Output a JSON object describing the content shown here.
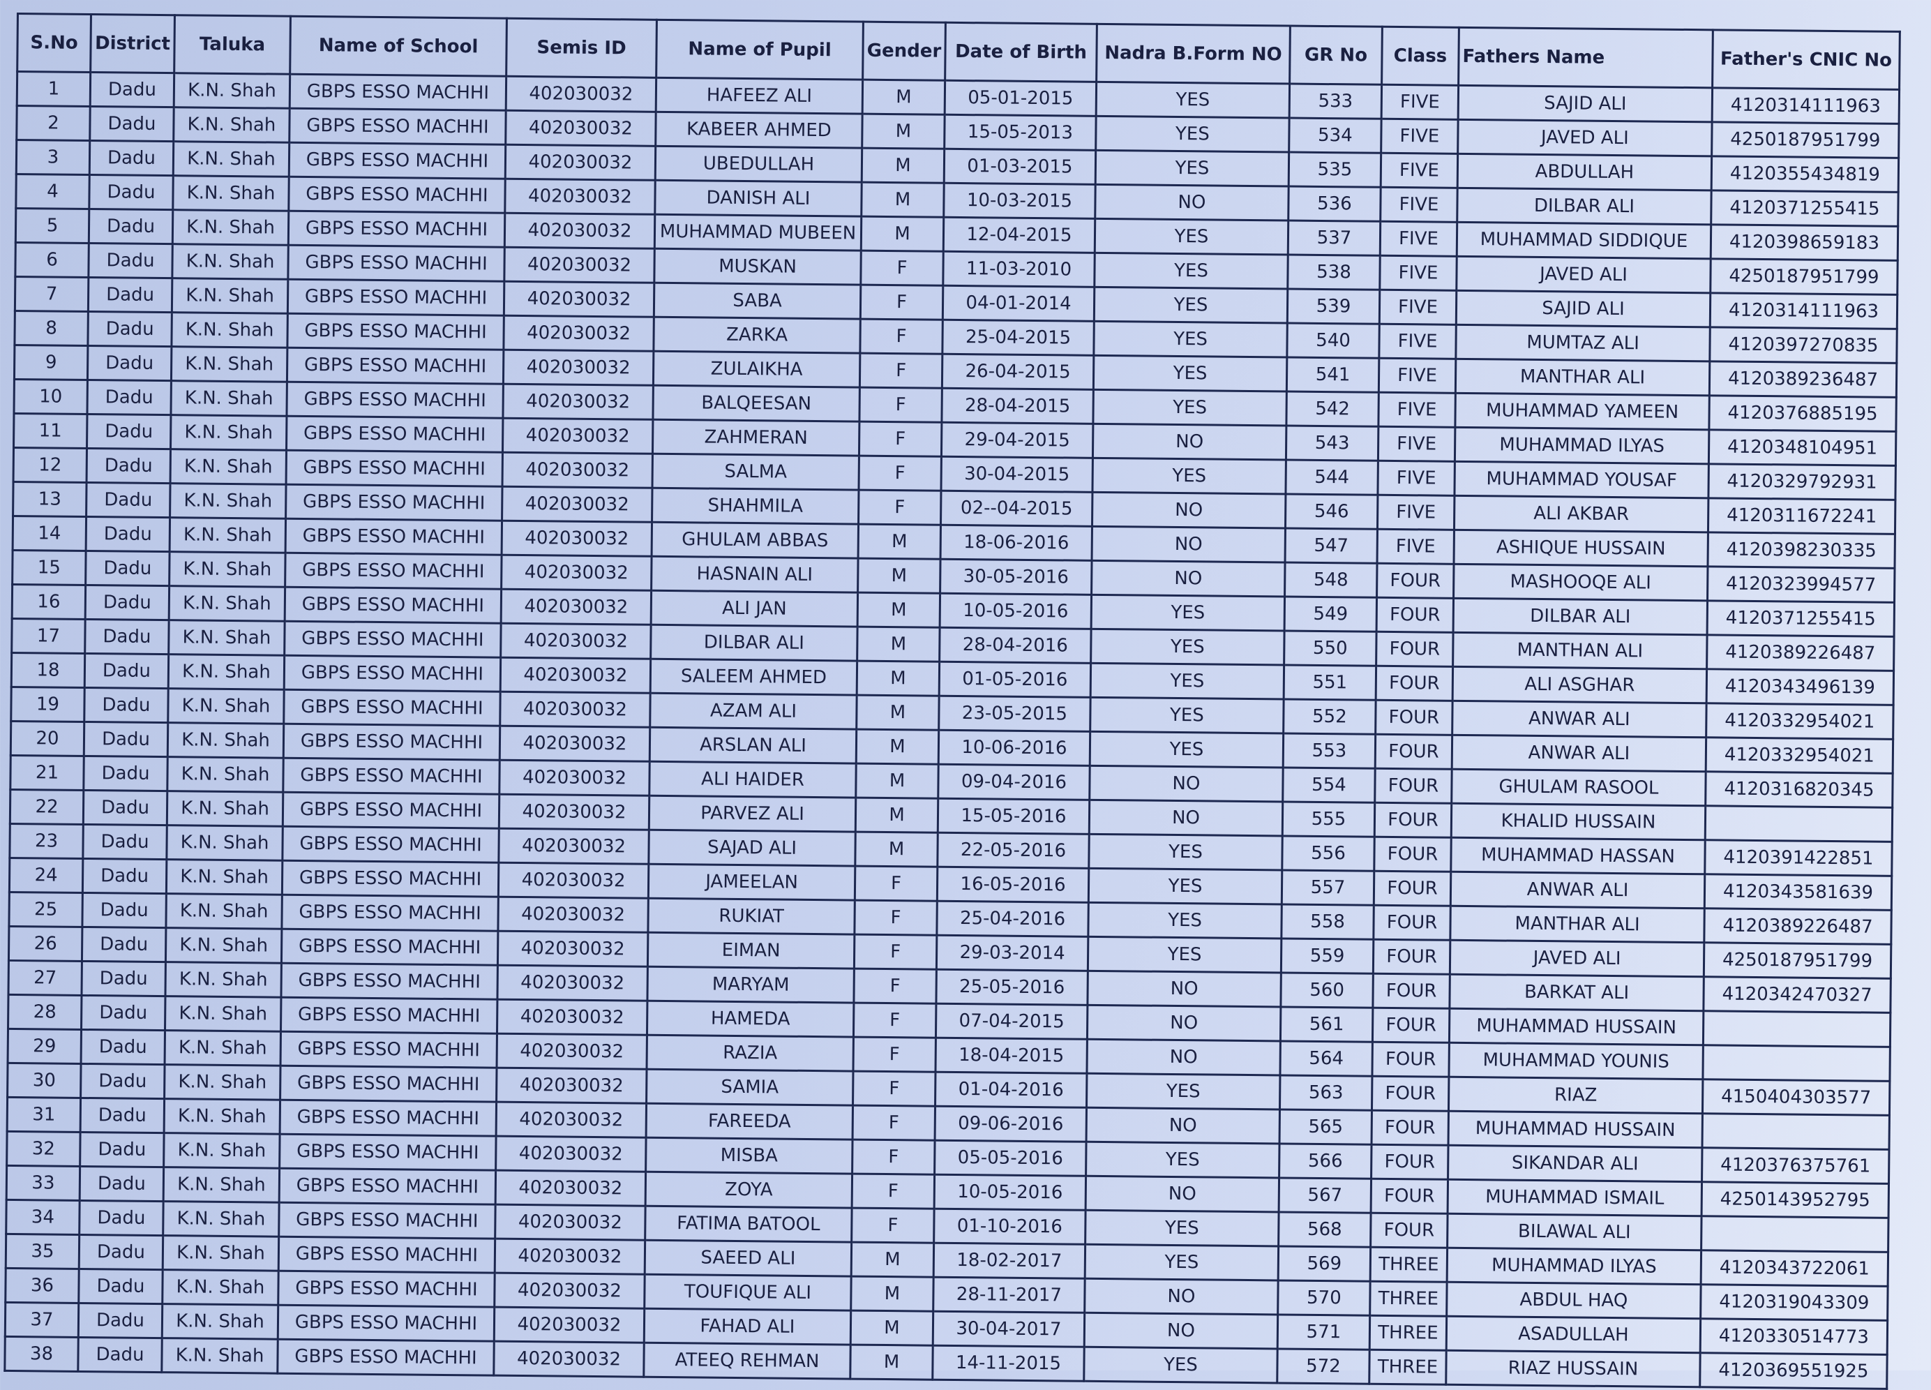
{
  "columns": [
    "S.No",
    "District",
    "Taluka",
    "Name of School",
    "Semis ID",
    "Name of Pupil",
    "Gender",
    "Date of Birth",
    "Nadra B.Form NO",
    "GR No",
    "Class",
    "Fathers Name",
    "Father's CNIC No"
  ],
  "rows": [
    [
      "1",
      "Dadu",
      "K.N. Shah",
      "GBPS ESSO MACHHI",
      "402030032",
      "HAFEEZ ALI",
      "M",
      "05-01-2015",
      "YES",
      "533",
      "FIVE",
      "SAJID ALI",
      "4120314111963"
    ],
    [
      "2",
      "Dadu",
      "K.N. Shah",
      "GBPS ESSO MACHHI",
      "402030032",
      "KABEER AHMED",
      "M",
      "15-05-2013",
      "YES",
      "534",
      "FIVE",
      "JAVED ALI",
      "4250187951799"
    ],
    [
      "3",
      "Dadu",
      "K.N. Shah",
      "GBPS ESSO MACHHI",
      "402030032",
      "UBEDULLAH",
      "M",
      "01-03-2015",
      "YES",
      "535",
      "FIVE",
      "ABDULLAH",
      "4120355434819"
    ],
    [
      "4",
      "Dadu",
      "K.N. Shah",
      "GBPS ESSO MACHHI",
      "402030032",
      "DANISH ALI",
      "M",
      "10-03-2015",
      "NO",
      "536",
      "FIVE",
      "DILBAR ALI",
      "4120371255415"
    ],
    [
      "5",
      "Dadu",
      "K.N. Shah",
      "GBPS ESSO MACHHI",
      "402030032",
      "MUHAMMAD MUBEEN",
      "M",
      "12-04-2015",
      "YES",
      "537",
      "FIVE",
      "MUHAMMAD SIDDIQUE",
      "4120398659183"
    ],
    [
      "6",
      "Dadu",
      "K.N. Shah",
      "GBPS ESSO MACHHI",
      "402030032",
      "MUSKAN",
      "F",
      "11-03-2010",
      "YES",
      "538",
      "FIVE",
      "JAVED ALI",
      "4250187951799"
    ],
    [
      "7",
      "Dadu",
      "K.N. Shah",
      "GBPS ESSO MACHHI",
      "402030032",
      "SABA",
      "F",
      "04-01-2014",
      "YES",
      "539",
      "FIVE",
      "SAJID ALI",
      "4120314111963"
    ],
    [
      "8",
      "Dadu",
      "K.N. Shah",
      "GBPS ESSO MACHHI",
      "402030032",
      "ZARKA",
      "F",
      "25-04-2015",
      "YES",
      "540",
      "FIVE",
      "MUMTAZ ALI",
      "4120397270835"
    ],
    [
      "9",
      "Dadu",
      "K.N. Shah",
      "GBPS ESSO MACHHI",
      "402030032",
      "ZULAIKHA",
      "F",
      "26-04-2015",
      "YES",
      "541",
      "FIVE",
      "MANTHAR ALI",
      "4120389236487"
    ],
    [
      "10",
      "Dadu",
      "K.N. Shah",
      "GBPS ESSO MACHHI",
      "402030032",
      "BALQEESAN",
      "F",
      "28-04-2015",
      "YES",
      "542",
      "FIVE",
      "MUHAMMAD YAMEEN",
      "4120376885195"
    ],
    [
      "11",
      "Dadu",
      "K.N. Shah",
      "GBPS ESSO MACHHI",
      "402030032",
      "ZAHMERAN",
      "F",
      "29-04-2015",
      "NO",
      "543",
      "FIVE",
      "MUHAMMAD ILYAS",
      "4120348104951"
    ],
    [
      "12",
      "Dadu",
      "K.N. Shah",
      "GBPS ESSO MACHHI",
      "402030032",
      "SALMA",
      "F",
      "30-04-2015",
      "YES",
      "544",
      "FIVE",
      "MUHAMMAD YOUSAF",
      "4120329792931"
    ],
    [
      "13",
      "Dadu",
      "K.N. Shah",
      "GBPS ESSO MACHHI",
      "402030032",
      "SHAHMILA",
      "F",
      "02--04-2015",
      "NO",
      "546",
      "FIVE",
      "ALI AKBAR",
      "4120311672241"
    ],
    [
      "14",
      "Dadu",
      "K.N. Shah",
      "GBPS ESSO MACHHI",
      "402030032",
      "GHULAM ABBAS",
      "M",
      "18-06-2016",
      "NO",
      "547",
      "FIVE",
      "ASHIQUE HUSSAIN",
      "4120398230335"
    ],
    [
      "15",
      "Dadu",
      "K.N. Shah",
      "GBPS ESSO MACHHI",
      "402030032",
      "HASNAIN ALI",
      "M",
      "30-05-2016",
      "NO",
      "548",
      "FOUR",
      "MASHOOQE ALI",
      "4120323994577"
    ],
    [
      "16",
      "Dadu",
      "K.N. Shah",
      "GBPS ESSO MACHHI",
      "402030032",
      "ALI JAN",
      "M",
      "10-05-2016",
      "YES",
      "549",
      "FOUR",
      "DILBAR ALI",
      "4120371255415"
    ],
    [
      "17",
      "Dadu",
      "K.N. Shah",
      "GBPS ESSO MACHHI",
      "402030032",
      "DILBAR ALI",
      "M",
      "28-04-2016",
      "YES",
      "550",
      "FOUR",
      "MANTHAN ALI",
      "4120389226487"
    ],
    [
      "18",
      "Dadu",
      "K.N. Shah",
      "GBPS ESSO MACHHI",
      "402030032",
      "SALEEM AHMED",
      "M",
      "01-05-2016",
      "YES",
      "551",
      "FOUR",
      "ALI ASGHAR",
      "4120343496139"
    ],
    [
      "19",
      "Dadu",
      "K.N. Shah",
      "GBPS ESSO MACHHI",
      "402030032",
      "AZAM ALI",
      "M",
      "23-05-2015",
      "YES",
      "552",
      "FOUR",
      "ANWAR ALI",
      "4120332954021"
    ],
    [
      "20",
      "Dadu",
      "K.N. Shah",
      "GBPS ESSO MACHHI",
      "402030032",
      "ARSLAN ALI",
      "M",
      "10-06-2016",
      "YES",
      "553",
      "FOUR",
      "ANWAR ALI",
      "4120332954021"
    ],
    [
      "21",
      "Dadu",
      "K.N. Shah",
      "GBPS ESSO MACHHI",
      "402030032",
      "ALI HAIDER",
      "M",
      "09-04-2016",
      "NO",
      "554",
      "FOUR",
      "GHULAM RASOOL",
      "4120316820345"
    ],
    [
      "22",
      "Dadu",
      "K.N. Shah",
      "GBPS ESSO MACHHI",
      "402030032",
      "PARVEZ ALI",
      "M",
      "15-05-2016",
      "NO",
      "555",
      "FOUR",
      "KHALID HUSSAIN",
      ""
    ],
    [
      "23",
      "Dadu",
      "K.N. Shah",
      "GBPS ESSO MACHHI",
      "402030032",
      "SAJAD ALI",
      "M",
      "22-05-2016",
      "YES",
      "556",
      "FOUR",
      "MUHAMMAD HASSAN",
      "4120391422851"
    ],
    [
      "24",
      "Dadu",
      "K.N. Shah",
      "GBPS ESSO MACHHI",
      "402030032",
      "JAMEELAN",
      "F",
      "16-05-2016",
      "YES",
      "557",
      "FOUR",
      "ANWAR ALI",
      "4120343581639"
    ],
    [
      "25",
      "Dadu",
      "K.N. Shah",
      "GBPS ESSO MACHHI",
      "402030032",
      "RUKIAT",
      "F",
      "25-04-2016",
      "YES",
      "558",
      "FOUR",
      "MANTHAR ALI",
      "4120389226487"
    ],
    [
      "26",
      "Dadu",
      "K.N. Shah",
      "GBPS ESSO MACHHI",
      "402030032",
      "EIMAN",
      "F",
      "29-03-2014",
      "YES",
      "559",
      "FOUR",
      "JAVED ALI",
      "4250187951799"
    ],
    [
      "27",
      "Dadu",
      "K.N. Shah",
      "GBPS ESSO MACHHI",
      "402030032",
      "MARYAM",
      "F",
      "25-05-2016",
      "NO",
      "560",
      "FOUR",
      "BARKAT ALI",
      "4120342470327"
    ],
    [
      "28",
      "Dadu",
      "K.N. Shah",
      "GBPS ESSO MACHHI",
      "402030032",
      "HAMEDA",
      "F",
      "07-04-2015",
      "NO",
      "561",
      "FOUR",
      "MUHAMMAD HUSSAIN",
      ""
    ],
    [
      "29",
      "Dadu",
      "K.N. Shah",
      "GBPS ESSO MACHHI",
      "402030032",
      "RAZIA",
      "F",
      "18-04-2015",
      "NO",
      "564",
      "FOUR",
      "MUHAMMAD YOUNIS",
      ""
    ],
    [
      "30",
      "Dadu",
      "K.N. Shah",
      "GBPS ESSO MACHHI",
      "402030032",
      "SAMIA",
      "F",
      "01-04-2016",
      "YES",
      "563",
      "FOUR",
      "RIAZ",
      "4150404303577"
    ],
    [
      "31",
      "Dadu",
      "K.N. Shah",
      "GBPS ESSO MACHHI",
      "402030032",
      "FAREEDA",
      "F",
      "09-06-2016",
      "NO",
      "565",
      "FOUR",
      "MUHAMMAD HUSSAIN",
      ""
    ],
    [
      "32",
      "Dadu",
      "K.N. Shah",
      "GBPS ESSO MACHHI",
      "402030032",
      "MISBA",
      "F",
      "05-05-2016",
      "YES",
      "566",
      "FOUR",
      "SIKANDAR ALI",
      "4120376375761"
    ],
    [
      "33",
      "Dadu",
      "K.N. Shah",
      "GBPS ESSO MACHHI",
      "402030032",
      "ZOYA",
      "F",
      "10-05-2016",
      "NO",
      "567",
      "FOUR",
      "MUHAMMAD ISMAIL",
      "4250143952795"
    ],
    [
      "34",
      "Dadu",
      "K.N. Shah",
      "GBPS ESSO MACHHI",
      "402030032",
      "FATIMA BATOOL",
      "F",
      "01-10-2016",
      "YES",
      "568",
      "FOUR",
      "BILAWAL ALI",
      ""
    ],
    [
      "35",
      "Dadu",
      "K.N. Shah",
      "GBPS ESSO MACHHI",
      "402030032",
      "SAEED ALI",
      "M",
      "18-02-2017",
      "YES",
      "569",
      "THREE",
      "MUHAMMAD ILYAS",
      "4120343722061"
    ],
    [
      "36",
      "Dadu",
      "K.N. Shah",
      "GBPS ESSO MACHHI",
      "402030032",
      "TOUFIQUE  ALI",
      "M",
      "28-11-2017",
      "NO",
      "570",
      "THREE",
      "ABDUL HAQ",
      "4120319043309"
    ],
    [
      "37",
      "Dadu",
      "K.N. Shah",
      "GBPS ESSO MACHHI",
      "402030032",
      "FAHAD ALI",
      "M",
      "30-04-2017",
      "NO",
      "571",
      "THREE",
      "ASADULLAH",
      "4120330514773"
    ],
    [
      "38",
      "Dadu",
      "K.N. Shah",
      "GBPS ESSO MACHHI",
      "402030032",
      "ATEEQ REHMAN",
      "M",
      "14-11-2015",
      "YES",
      "572",
      "THREE",
      "RIAZ HUSSAIN",
      "4120369551925"
    ]
  ]
}
